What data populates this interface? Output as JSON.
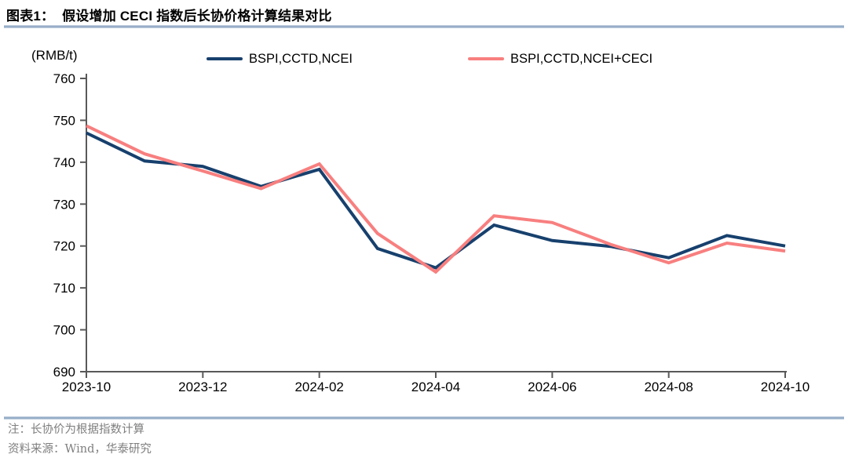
{
  "header": {
    "title": "图表1：  假设增加 CECI 指数后长协价格计算结果对比"
  },
  "notes": {
    "note": "注：长协价为根据指数计算",
    "source": "资料来源：Wind，华泰研究"
  },
  "colors": {
    "axis": "#595959",
    "divider": "#85a0bf",
    "note_text": "#7f7f7f",
    "series_blue": "#17406d",
    "series_pink": "#f87f7f"
  },
  "chart_data": {
    "type": "line",
    "title": "假设增加 CECI 指数后长协价格计算结果对比",
    "unit_label": "(RMB/t)",
    "x": [
      "2023-10",
      "2023-11",
      "2023-12",
      "2024-01",
      "2024-02",
      "2024-03",
      "2024-04",
      "2024-05",
      "2024-06",
      "2024-07",
      "2024-08",
      "2024-09",
      "2024-10"
    ],
    "x_tick_indices": [
      0,
      2,
      4,
      6,
      8,
      10,
      12
    ],
    "x_tick_labels": [
      "2023-10",
      "2023-12",
      "2024-02",
      "2024-04",
      "2024-06",
      "2024-08",
      "2024-10"
    ],
    "y_ticks": [
      690,
      700,
      710,
      720,
      730,
      740,
      750,
      760
    ],
    "ylim": [
      690,
      760
    ],
    "grid": false,
    "legend_position": "top",
    "series": [
      {
        "name": "BSPI,CCTD,NCEI",
        "color": "#17406d",
        "values": [
          747.0,
          740.3,
          739.0,
          734.2,
          738.3,
          719.4,
          714.8,
          725.0,
          721.3,
          719.9,
          717.2,
          722.5,
          720.0
        ]
      },
      {
        "name": "BSPI,CCTD,NCEI+CECI",
        "color": "#f87f7f",
        "values": [
          748.7,
          742.0,
          737.9,
          733.7,
          739.6,
          723.0,
          713.8,
          727.2,
          725.6,
          720.4,
          716.0,
          720.7,
          718.8
        ]
      }
    ]
  }
}
